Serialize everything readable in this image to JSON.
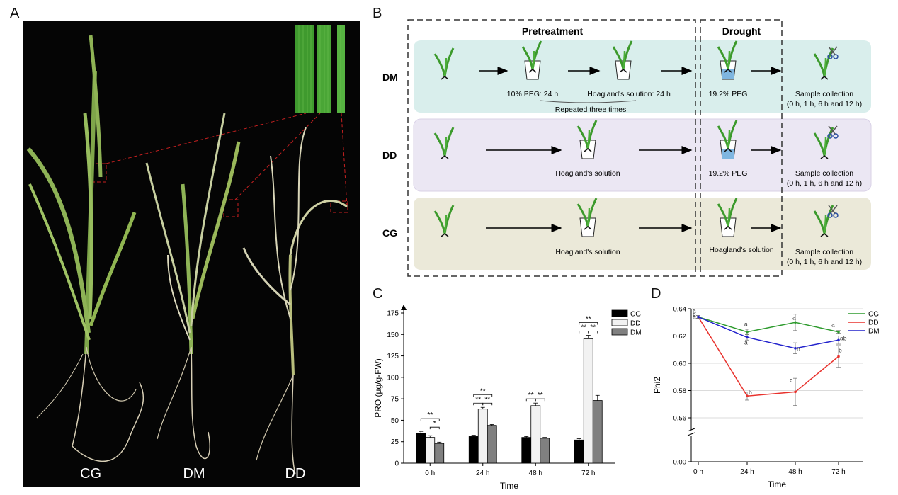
{
  "panels": {
    "a": "A",
    "b": "B",
    "c": "C",
    "d": "D"
  },
  "panel_a": {
    "labels": [
      "CG",
      "DM",
      "DD"
    ]
  },
  "panel_b": {
    "pretreatment": "Pretreatment",
    "drought": "Drought",
    "rows": [
      {
        "label": "DM",
        "step1": "10% PEG: 24 h",
        "step2": "Hoagland's solution: 24 h",
        "repeat": "Repeated three times",
        "drought": "19.2% PEG",
        "sample1": "Sample collection",
        "sample2": "(0 h, 1 h, 6 h and 12 h)",
        "color": "#d9eeec"
      },
      {
        "label": "DD",
        "step1": "Hoagland's solution",
        "drought": "19.2% PEG",
        "sample1": "Sample collection",
        "sample2": "(0 h, 1 h, 6 h and 12 h)",
        "color": "#ebe7f3"
      },
      {
        "label": "CG",
        "step1": "Hoagland's solution",
        "drought": "Hoagland's solution",
        "sample1": "Sample collection",
        "sample2": "(0 h, 1 h, 6 h and 12 h)",
        "color": "#ebe9d9"
      }
    ]
  },
  "chart_data": [
    {
      "type": "bar",
      "categories": [
        "0 h",
        "24 h",
        "48 h",
        "72 h"
      ],
      "series": [
        {
          "name": "CG",
          "values": [
            35,
            31,
            30,
            27
          ],
          "errors": [
            2,
            1.5,
            1,
            1.5
          ],
          "color": "#000000"
        },
        {
          "name": "DD",
          "values": [
            30,
            63,
            67,
            145
          ],
          "errors": [
            2,
            2,
            3,
            4
          ],
          "color": "#f2f2f2"
        },
        {
          "name": "DM",
          "values": [
            23,
            44,
            29,
            73
          ],
          "errors": [
            1.5,
            1,
            1,
            6
          ],
          "color": "#808080"
        }
      ],
      "xlabel": "Time",
      "ylabel": "PRO (μg/g-FW)",
      "ylim": [
        0,
        175
      ],
      "yticks": [
        "0",
        "25",
        "50",
        "75",
        "100",
        "125",
        "150",
        "175"
      ],
      "annotations": [
        {
          "group": "0 h",
          "marks": [
            "**",
            "*"
          ]
        },
        {
          "group": "24 h",
          "marks": [
            "**",
            "**",
            "**"
          ]
        },
        {
          "group": "48 h",
          "marks": [
            "**",
            "**"
          ]
        },
        {
          "group": "72 h",
          "marks": [
            "**",
            "**",
            "**"
          ]
        }
      ],
      "legend": "top-right"
    },
    {
      "type": "line",
      "x": [
        "0 h",
        "24 h",
        "48 h",
        "72 h"
      ],
      "series": [
        {
          "name": "CG",
          "values": [
            0.634,
            0.623,
            0.63,
            0.623
          ],
          "errors": [
            0.001,
            0.002,
            0.006,
            0.001
          ],
          "letters": [
            "a",
            "a",
            "a",
            "a"
          ],
          "color": "#2e9b2e"
        },
        {
          "name": "DD",
          "values": [
            0.634,
            0.576,
            0.579,
            0.605
          ],
          "errors": [
            0.001,
            0.003,
            0.01,
            0.008
          ],
          "letters": [
            "a",
            "b",
            "c",
            "b"
          ],
          "color": "#e8322d"
        },
        {
          "name": "DM",
          "values": [
            0.634,
            0.619,
            0.611,
            0.617
          ],
          "errors": [
            0.001,
            0.002,
            0.004,
            0.003
          ],
          "letters": [
            "a",
            "a",
            "b",
            "ab"
          ],
          "color": "#2222cc"
        }
      ],
      "xlabel": "Time",
      "ylabel": "Phi2",
      "yticks": [
        "0.00",
        "0.56",
        "0.58",
        "0.60",
        "0.62",
        "0.64"
      ],
      "grid": true,
      "legend": "top-right"
    }
  ]
}
